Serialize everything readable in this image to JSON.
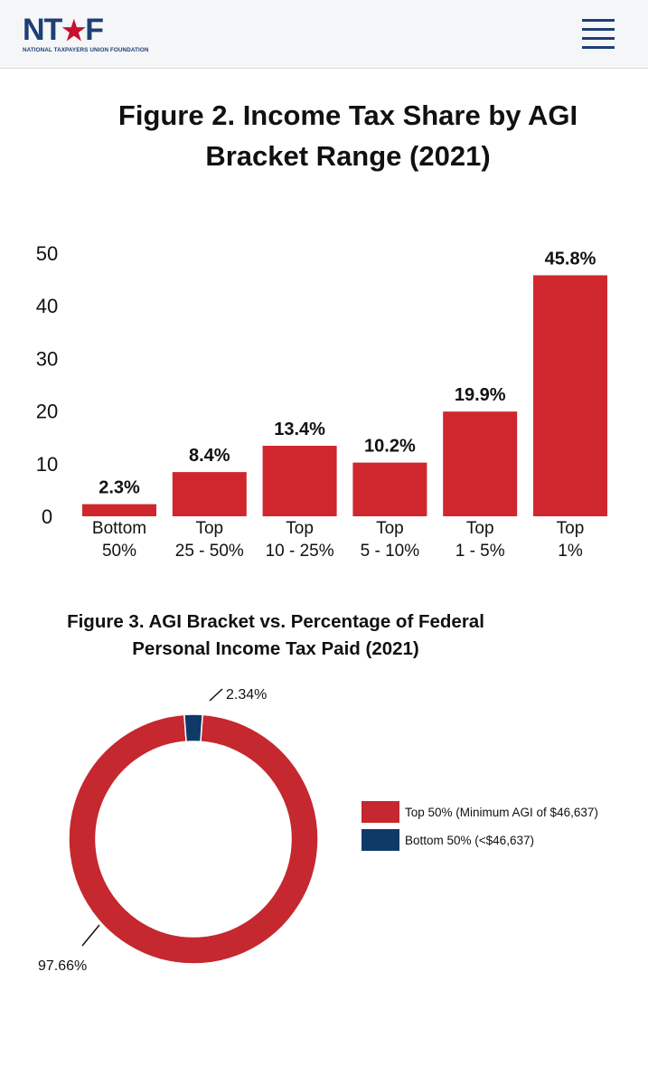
{
  "header": {
    "logo_text": "NTUF",
    "logo_tagline": "NATIONAL TAXPAYERS UNION FOUNDATION"
  },
  "colors": {
    "brand_navy": "#1e3f73",
    "bar_red": "#d0272e",
    "donut_red": "#c5282f",
    "donut_navy": "#0f3a67"
  },
  "icons": {
    "menu": "hamburger-menu-icon",
    "logo_star": "star-icon"
  },
  "figure2": {
    "title": "Figure 2. Income Tax Share by AGI Bracket Range (2021)"
  },
  "figure3": {
    "title_line1": "Figure 3. AGI Bracket vs. Percentage of Federal",
    "title_line2": "Personal Income Tax Paid (2021)"
  },
  "chart_data": [
    {
      "type": "bar",
      "title": "Figure 2. Income Tax Share by AGI Bracket Range (2021)",
      "categories": [
        [
          "Bottom",
          "50%"
        ],
        [
          "Top",
          "25 - 50%"
        ],
        [
          "Top",
          "10 - 25%"
        ],
        [
          "Top",
          "5 - 10%"
        ],
        [
          "Top",
          "1 - 5%"
        ],
        [
          "Top",
          "1%"
        ]
      ],
      "values": [
        2.3,
        8.4,
        13.4,
        10.2,
        19.9,
        45.8
      ],
      "data_labels": [
        "2.3%",
        "8.4%",
        "13.4%",
        "10.2%",
        "19.9%",
        "45.8%"
      ],
      "yticks": [
        0,
        10,
        20,
        30,
        40,
        50
      ],
      "ylim": [
        0,
        50
      ],
      "grid": false,
      "xlabel": "",
      "ylabel": ""
    },
    {
      "type": "pie",
      "variant": "donut",
      "title": "Figure 3. AGI Bracket vs. Percentage of Federal Personal Income Tax Paid (2021)",
      "slices": [
        {
          "label": "Top 50% (Minimum AGI of $46,637)",
          "value": 97.66,
          "display": "97.66%",
          "color": "#c5282f"
        },
        {
          "label": "Bottom 50% (<$46,637)",
          "value": 2.34,
          "display": "2.34%",
          "color": "#0f3a67"
        }
      ],
      "legend_position": "right"
    }
  ]
}
